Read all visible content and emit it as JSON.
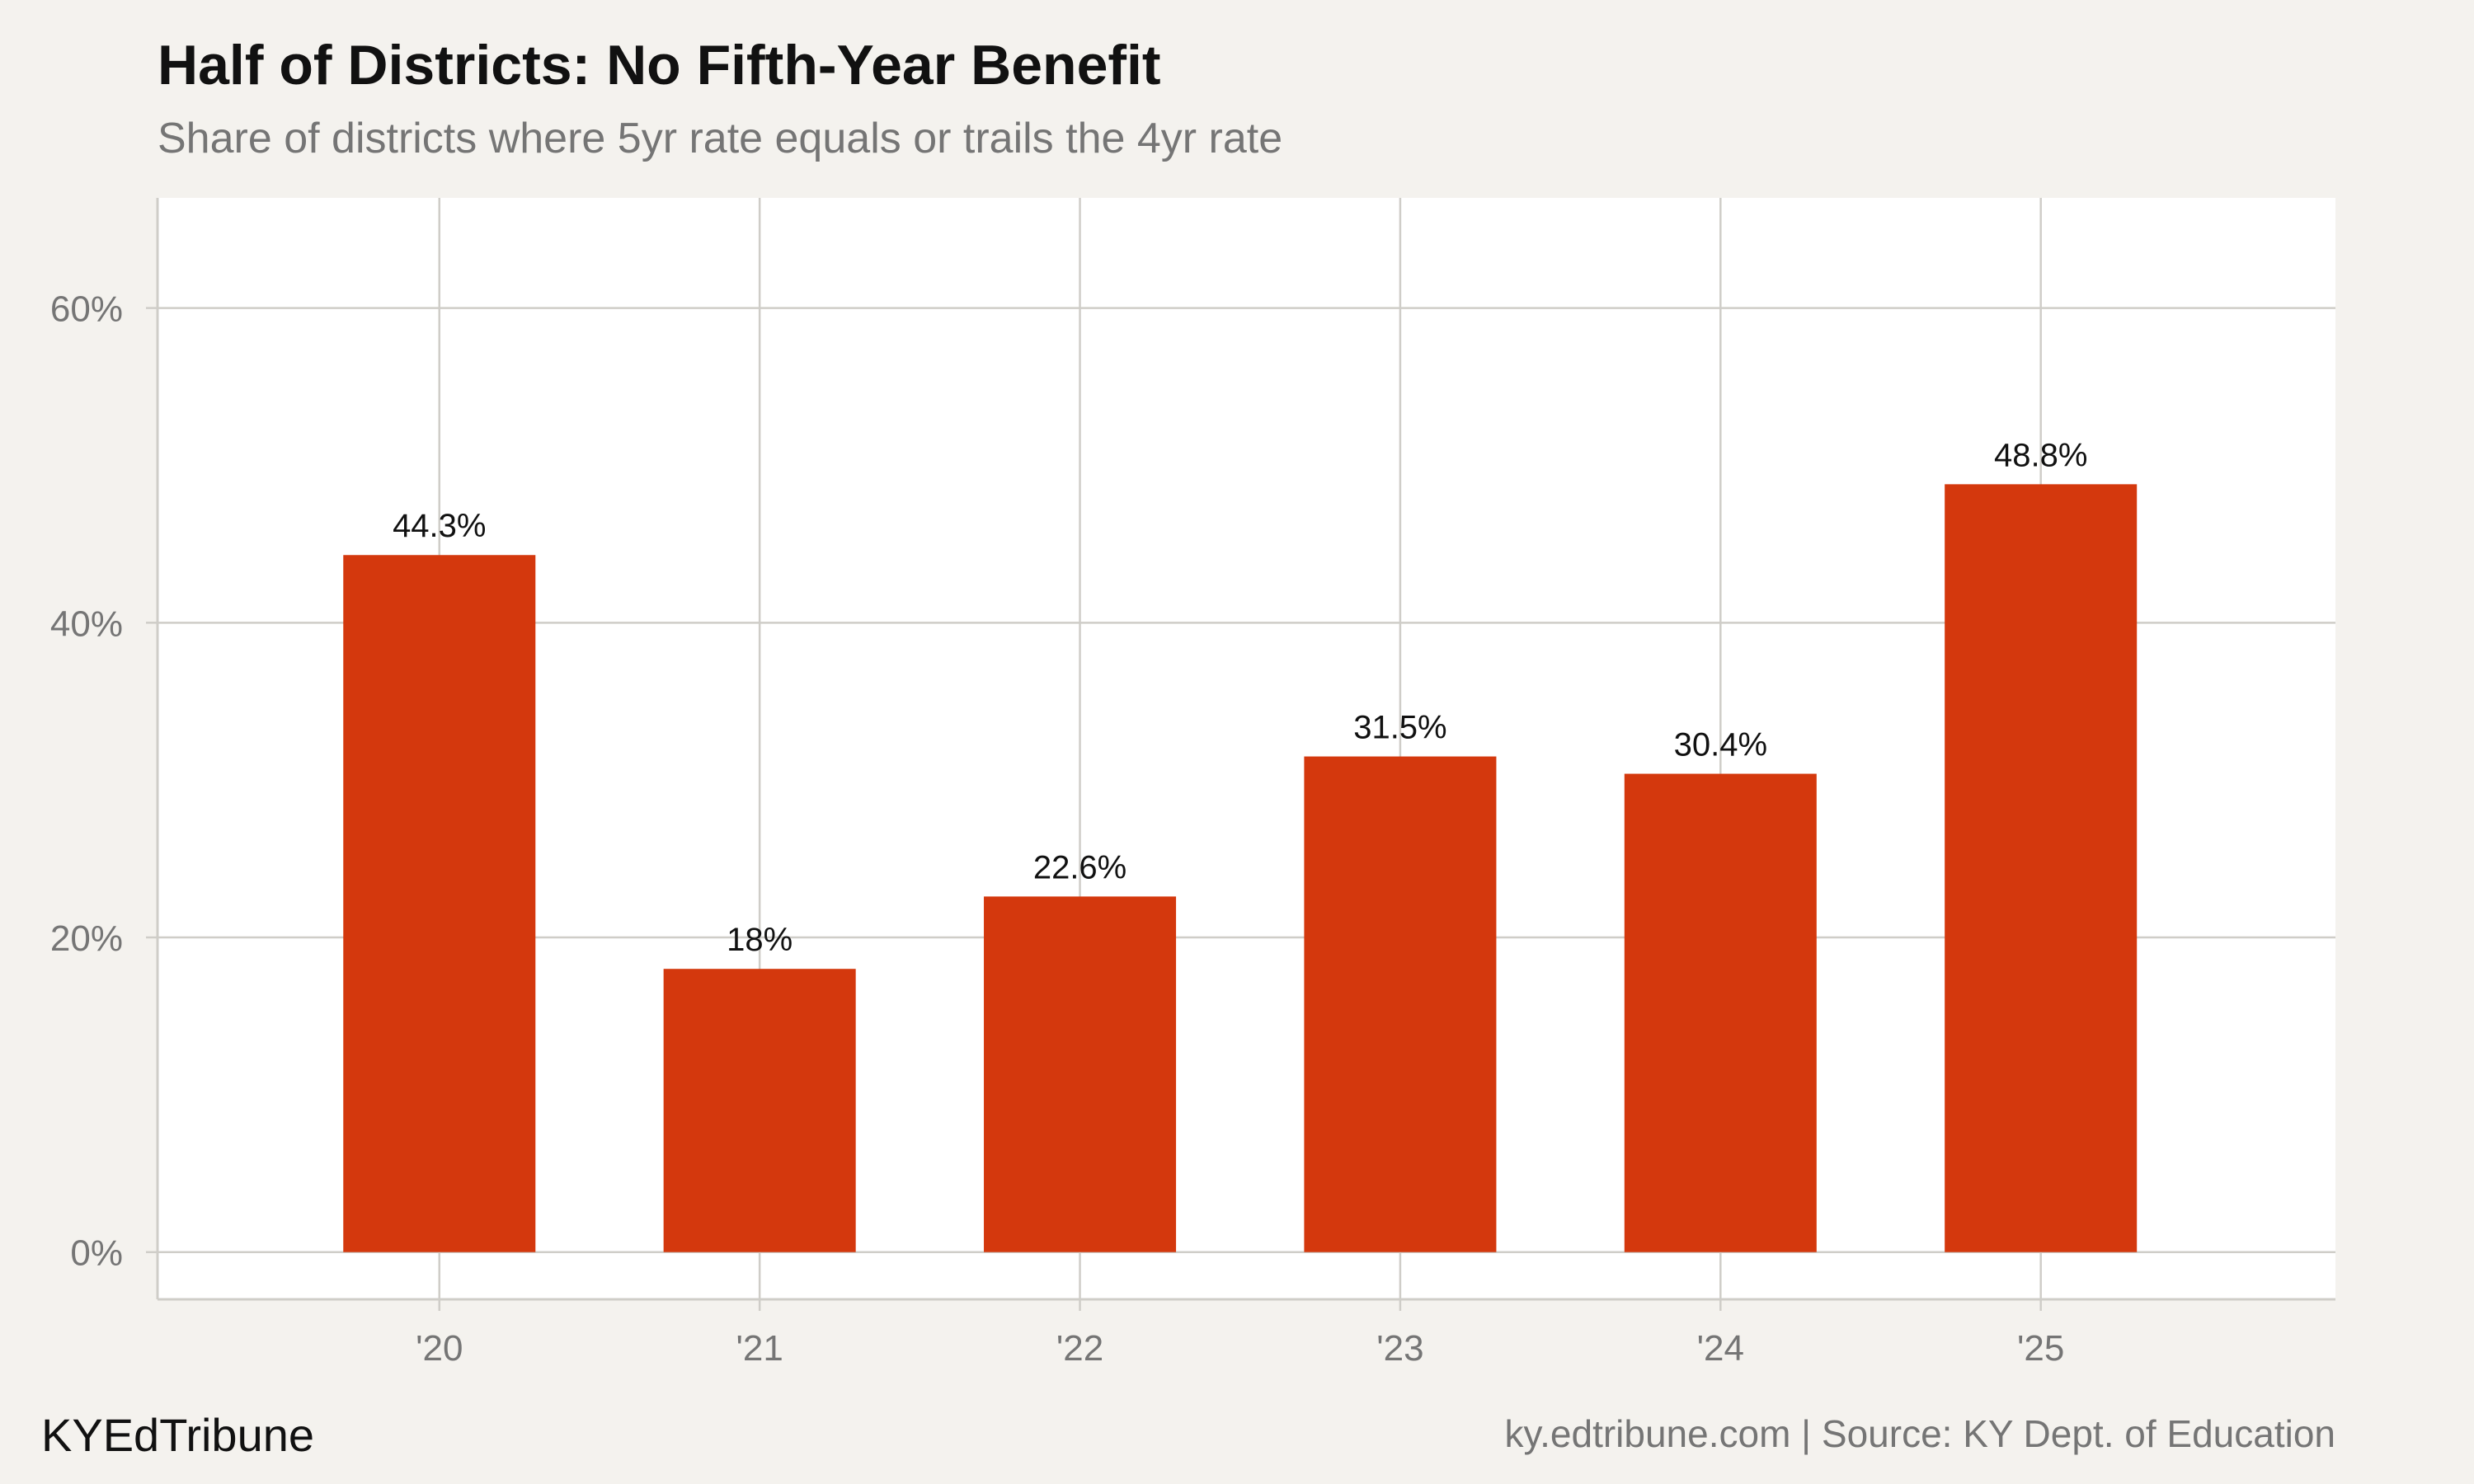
{
  "header": {
    "title": "Half of Districts: No Fifth-Year Benefit",
    "subtitle": "Share of districts where 5yr rate equals or trails the 4yr rate"
  },
  "footer": {
    "brand": "KYEdTribune",
    "credit": "ky.edtribune.com | Source: KY Dept. of Education"
  },
  "chart_data": {
    "type": "bar",
    "categories": [
      "'20",
      "'21",
      "'22",
      "'23",
      "'24",
      "'25"
    ],
    "values": [
      44.3,
      18,
      22.6,
      31.5,
      30.4,
      48.8
    ],
    "data_labels": [
      "44.3%",
      "18%",
      "22.6%",
      "31.5%",
      "30.4%",
      "48.8%"
    ],
    "y_ticks": [
      0,
      20,
      40,
      60
    ],
    "y_tick_labels": [
      "0%",
      "20%",
      "40%",
      "60%"
    ],
    "ylim": [
      -3,
      67
    ],
    "grid": true,
    "colors": {
      "bar": "#d4380d",
      "grid": "#cfcdc8",
      "plot_background": "#ffffff",
      "page_background": "#f4f2ee"
    }
  }
}
